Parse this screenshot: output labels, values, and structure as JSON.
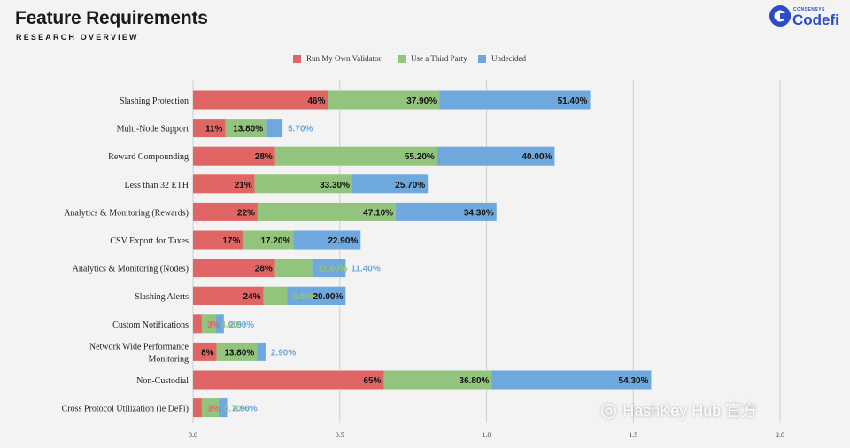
{
  "header": {
    "title": "Feature Requirements",
    "subtitle": "RESEARCH OVERVIEW"
  },
  "logo": {
    "small_text": "CONSENSYS",
    "name": "Codefi"
  },
  "watermark": "HashKey Hub 官方",
  "colors": {
    "run_own": "#e06666",
    "third_party": "#93c47d",
    "undecided": "#6fa8dc",
    "background": "#f3f3f3",
    "grid": "#cfcfcf"
  },
  "chart_data": {
    "type": "bar",
    "orientation": "horizontal",
    "stacked": true,
    "categories": [
      "Slashing Protection",
      "Multi-Node Support",
      "Reward Compounding",
      "Less than 32 ETH",
      "Analytics & Monitoring (Rewards)",
      "CSV Export for Taxes",
      "Analytics & Monitoring (Nodes)",
      "Slashing Alerts",
      "Custom Notifications",
      "Network Wide Performance Monitoring",
      "Non-Custodial",
      "Cross Protocol Utilization (ie DeFi)"
    ],
    "series": [
      {
        "name": "Run My Own Validator",
        "values": [
          0.46,
          0.11,
          0.28,
          0.21,
          0.22,
          0.17,
          0.28,
          0.24,
          0.03,
          0.08,
          0.65,
          0.03
        ],
        "labels": [
          "46%",
          "11%",
          "28%",
          "21%",
          "22%",
          "17%",
          "28%",
          "24%",
          "3%",
          "8%",
          "65%",
          "3%"
        ]
      },
      {
        "name": "Use a Third Party",
        "values": [
          0.379,
          0.138,
          0.552,
          0.333,
          0.471,
          0.172,
          0.126,
          0.08,
          0.046,
          0.138,
          0.368,
          0.057
        ],
        "labels": [
          "37.90%",
          "13.80%",
          "55.20%",
          "33.30%",
          "47.10%",
          "17.20%",
          "12.60%",
          "8.00%",
          "4.60%",
          "13.80%",
          "36.80%",
          "5.70%"
        ]
      },
      {
        "name": "Undecided",
        "values": [
          0.514,
          0.057,
          0.4,
          0.257,
          0.343,
          0.229,
          0.114,
          0.2,
          0.029,
          0.029,
          0.543,
          0.029
        ],
        "labels": [
          "51.40%",
          "5.70%",
          "40.00%",
          "25.70%",
          "34.30%",
          "22.90%",
          "11.40%",
          "20.00%",
          "2.90%",
          "2.90%",
          "54.30%",
          "2.90%"
        ]
      }
    ],
    "xlim": [
      0,
      2.0
    ],
    "xticks": [
      "0.0",
      "0.5",
      "1.0",
      "1.5",
      "2.0"
    ],
    "grid": true,
    "legend": "top-center"
  }
}
